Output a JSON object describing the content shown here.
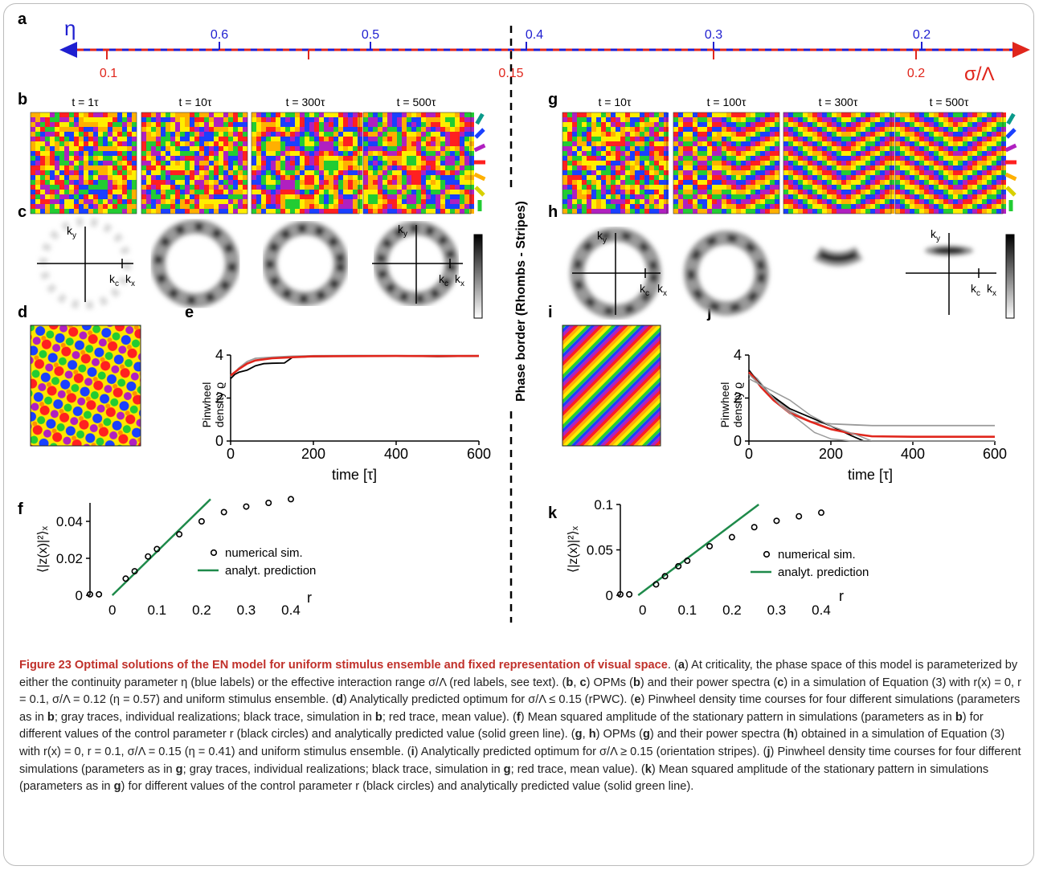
{
  "panel_letters": [
    "a",
    "b",
    "c",
    "d",
    "e",
    "f",
    "g",
    "h",
    "i",
    "j",
    "k"
  ],
  "axis_a": {
    "eta_symbol": "η",
    "sigma_symbol": "σ/Λ",
    "eta_ticks": [
      "0.6",
      "0.5",
      "0.4",
      "0.3",
      "0.2"
    ],
    "sigma_ticks": [
      "0.1",
      "0.15",
      "0.2"
    ],
    "colors": {
      "eta": "#1f1fd0",
      "sigma": "#e0261c"
    }
  },
  "phase_border_label": "Phase border (Rhombs - Stripes)",
  "panel_b": {
    "time_labels": [
      "t = 1τ",
      "t = 10τ",
      "t = 300τ",
      "t = 500τ"
    ]
  },
  "panel_g": {
    "time_labels": [
      "t = 10τ",
      "t = 100τ",
      "t = 300τ",
      "t = 500τ"
    ]
  },
  "spectrum_axes": {
    "ky": "k",
    "ky_sub": "y",
    "kx": "k",
    "kx_sub": "x",
    "kc": "k",
    "kc_sub": "c"
  },
  "panel_e": {
    "ylabel_line1": "Pinwheel",
    "ylabel_line2": "density ϱ",
    "xlabel": "time [τ]",
    "yticks": [
      "0",
      "2",
      "4"
    ],
    "xticks": [
      "0",
      "200",
      "400",
      "600"
    ]
  },
  "panel_j": {
    "ylabel_line1": "Pinwheel",
    "ylabel_line2": "density ϱ",
    "xlabel": "time [τ]",
    "yticks": [
      "0",
      "2",
      "4"
    ],
    "xticks": [
      "0",
      "200",
      "400",
      "600"
    ]
  },
  "panel_f": {
    "ylabel": "⟨|z(x)|²⟩ₓ",
    "xlabel": "r",
    "yticks": [
      "0",
      "0.02",
      "0.04"
    ],
    "xticks": [
      "0",
      "0.1",
      "0.2",
      "0.3",
      "0.4"
    ],
    "legend": [
      "numerical sim.",
      "analyt. prediction"
    ]
  },
  "panel_k": {
    "ylabel": "⟨|z(x)|²⟩ₓ",
    "xlabel": "r",
    "yticks": [
      "0",
      "0.05",
      "0.1"
    ],
    "xticks": [
      "0",
      "0.1",
      "0.2",
      "0.3",
      "0.4"
    ],
    "legend": [
      "numerical sim.",
      "analyt. prediction"
    ]
  },
  "chart_data": [
    {
      "type": "line",
      "panel": "e",
      "xlabel": "time [τ]",
      "ylabel": "Pinwheel density ϱ",
      "xlim": [
        0,
        600
      ],
      "ylim": [
        0,
        4
      ],
      "series": [
        {
          "name": "gray traces, individual realizations",
          "color": "#9a9a9a",
          "x": [
            0,
            10,
            20,
            40,
            60,
            100,
            150,
            200,
            300,
            400,
            500,
            600
          ],
          "y": [
            3.0,
            3.2,
            3.4,
            3.7,
            3.85,
            3.9,
            3.95,
            3.97,
            3.98,
            3.97,
            3.98,
            3.97
          ]
        },
        {
          "name": "black trace, simulation in b",
          "color": "#000000",
          "x": [
            0,
            10,
            20,
            40,
            60,
            80,
            100,
            130,
            150,
            200,
            300,
            400,
            500,
            600
          ],
          "y": [
            2.9,
            3.1,
            3.2,
            3.3,
            3.5,
            3.6,
            3.62,
            3.63,
            3.9,
            3.93,
            3.95,
            3.96,
            3.93,
            3.95
          ]
        },
        {
          "name": "red trace, mean value",
          "color": "#e0261c",
          "x": [
            0,
            10,
            20,
            40,
            60,
            100,
            150,
            200,
            300,
            400,
            500,
            600
          ],
          "y": [
            3.05,
            3.2,
            3.35,
            3.6,
            3.75,
            3.85,
            3.9,
            3.94,
            3.95,
            3.96,
            3.95,
            3.96
          ]
        }
      ]
    },
    {
      "type": "line",
      "panel": "j",
      "xlabel": "time [τ]",
      "ylabel": "Pinwheel density ϱ",
      "xlim": [
        0,
        600
      ],
      "ylim": [
        0,
        4
      ],
      "series": [
        {
          "name": "gray traces, individual realizations",
          "color": "#9a9a9a",
          "x": [
            0,
            20,
            50,
            100,
            150,
            200,
            260,
            300,
            400,
            600
          ],
          "y": [
            3.2,
            2.9,
            2.2,
            1.4,
            0.9,
            0.8,
            0.75,
            0.72,
            0.72,
            0.72
          ]
        },
        {
          "name": "black trace, simulation in g",
          "color": "#000000",
          "x": [
            0,
            20,
            50,
            100,
            150,
            200,
            250,
            280,
            300,
            400,
            600
          ],
          "y": [
            3.3,
            2.8,
            2.2,
            1.5,
            1.1,
            0.7,
            0.25,
            0.0,
            0.0,
            0.0,
            0.0
          ]
        },
        {
          "name": "red trace, mean value",
          "color": "#e0261c",
          "x": [
            0,
            10,
            30,
            60,
            100,
            150,
            200,
            250,
            300,
            400,
            500,
            600
          ],
          "y": [
            3.2,
            3.0,
            2.5,
            1.9,
            1.3,
            0.9,
            0.55,
            0.35,
            0.22,
            0.2,
            0.2,
            0.2
          ]
        }
      ]
    },
    {
      "type": "scatter",
      "panel": "f",
      "xlabel": "r",
      "ylabel": "⟨|z(x)|²⟩ₓ",
      "xlim": [
        -0.05,
        0.4
      ],
      "ylim": [
        0,
        0.05
      ],
      "series": [
        {
          "name": "numerical sim.",
          "x": [
            -0.05,
            -0.03,
            0.03,
            0.05,
            0.08,
            0.1,
            0.15,
            0.2,
            0.25,
            0.3,
            0.35,
            0.4
          ],
          "y": [
            0.0005,
            0.0005,
            0.009,
            0.013,
            0.021,
            0.025,
            0.033,
            0.04,
            0.045,
            0.048,
            0.05,
            0.052
          ]
        },
        {
          "name": "analyt. prediction",
          "x": [
            0,
            0.22
          ],
          "y": [
            0,
            0.052
          ]
        }
      ]
    },
    {
      "type": "scatter",
      "panel": "k",
      "xlabel": "r",
      "ylabel": "⟨|z(x)|²⟩ₓ",
      "xlim": [
        -0.05,
        0.4
      ],
      "ylim": [
        0,
        0.1
      ],
      "series": [
        {
          "name": "numerical sim.",
          "x": [
            -0.05,
            -0.03,
            0.03,
            0.05,
            0.08,
            0.1,
            0.15,
            0.2,
            0.25,
            0.3,
            0.35,
            0.4
          ],
          "y": [
            0.001,
            0.001,
            0.012,
            0.021,
            0.032,
            0.038,
            0.054,
            0.064,
            0.075,
            0.082,
            0.087,
            0.091
          ]
        },
        {
          "name": "analyt. prediction",
          "x": [
            -0.01,
            0.26
          ],
          "y": [
            0,
            0.1
          ]
        }
      ]
    }
  ],
  "caption": {
    "title": "Figure 23 Optimal solutions of the EN model for uniform stimulus ensemble and fixed representation of visual space",
    "parts": [
      ". (",
      "a",
      ") At criticality, the phase space of this model is parameterized by either the continuity parameter η (blue labels) or the effective interaction range σ/Λ (red labels, see text). (",
      "b",
      ", ",
      "c",
      ") OPMs (",
      "b",
      ") and their power spectra (",
      "c",
      ") in a simulation of Equation (3) with r(x) = 0, r = 0.1, σ/Λ = 0.12 (η = 0.57) and uniform stimulus ensemble. (",
      "d",
      ") Analytically predicted optimum for σ/Λ ≤ 0.15 (rPWC). (",
      "e",
      ") Pinwheel density time courses for four different simulations (parameters as in ",
      "b",
      "; gray traces, individual realizations; black trace, simulation in ",
      "b",
      "; red trace, mean value). (",
      "f",
      ") Mean squared amplitude of the stationary pattern in simulations (parameters as in ",
      "b",
      ") for different values of the control parameter r (black circles) and analytically predicted value (solid green line). (",
      "g",
      ", ",
      "h",
      ") OPMs (",
      "g",
      ") and their power spectra (",
      "h",
      ") obtained in a simulation of Equation (3) with r(x) = 0, r = 0.1, σ/Λ = 0.15 (η = 0.41) and uniform stimulus ensemble. (",
      "i",
      ") Analytically predicted optimum for σ/Λ ≥ 0.15 (orientation stripes). (",
      "j",
      ") Pinwheel density time courses for four different simulations (parameters as in ",
      "g",
      "; gray traces, individual realizations; black trace, simulation in ",
      "g",
      "; red trace, mean value). (",
      "k",
      ") Mean squared amplitude of the stationary pattern in simulations (parameters as in ",
      "g",
      ") for different values of the control parameter r (black circles) and analytically predicted value (solid green line)."
    ]
  }
}
